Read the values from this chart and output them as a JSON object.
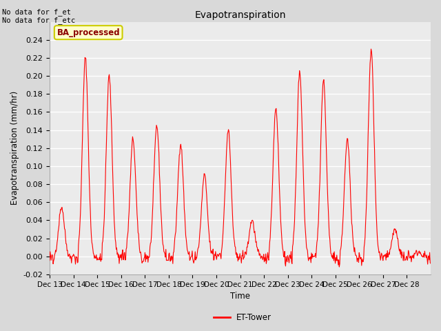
{
  "title": "Evapotranspiration",
  "ylabel": "Evapotranspiration (mm/hr)",
  "xlabel": "Time",
  "line_color": "red",
  "legend_label": "ET-Tower",
  "annotation_text": "No data for f_et\nNo data for f_etc",
  "box_label": "BA_processed",
  "ylim": [
    -0.02,
    0.26
  ],
  "yticks": [
    -0.02,
    0.0,
    0.02,
    0.04,
    0.06,
    0.08,
    0.1,
    0.12,
    0.14,
    0.16,
    0.18,
    0.2,
    0.22,
    0.24
  ],
  "xtick_labels": [
    "Dec 13",
    "Dec 14",
    "Dec 15",
    "Dec 16",
    "Dec 17",
    "Dec 18",
    "Dec 19",
    "Dec 20",
    "Dec 21",
    "Dec 22",
    "Dec 23",
    "Dec 24",
    "Dec 25",
    "Dec 26",
    "Dec 27",
    "Dec 28"
  ],
  "background_color": "#d9d9d9",
  "plot_bg_color": "#ebebeb",
  "grid_color": "white",
  "box_bg_color": "#ffffcc",
  "box_edge_color": "#cccc00",
  "day_peaks": [
    0.055,
    0.22,
    0.2,
    0.13,
    0.145,
    0.125,
    0.09,
    0.14,
    0.04,
    0.165,
    0.205,
    0.195,
    0.13,
    0.23,
    0.03,
    0.005
  ],
  "n_days": 16,
  "n_per_day": 48
}
